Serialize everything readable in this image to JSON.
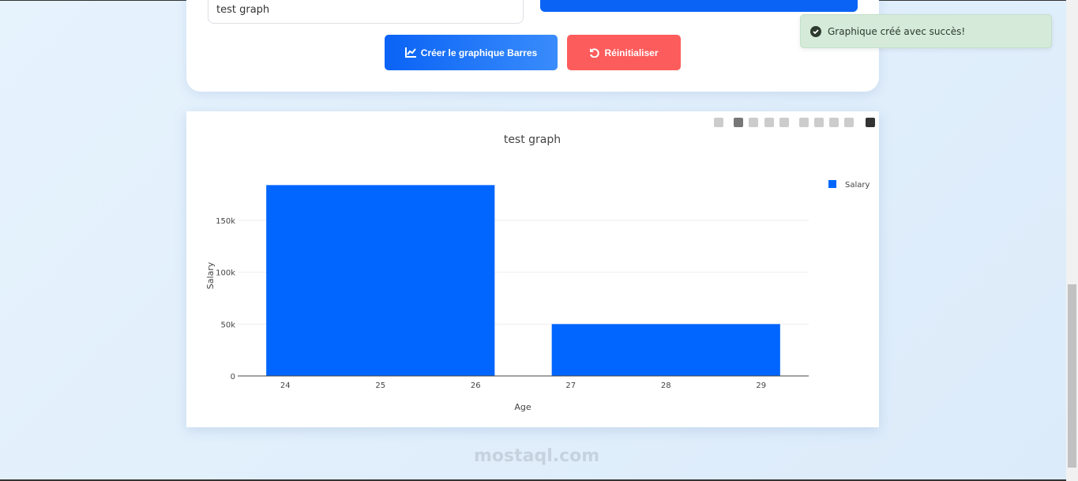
{
  "form": {
    "title_value": "test graph",
    "create_button": "Créer le graphique Barres",
    "reset_button": "Réinitialiser"
  },
  "toast": {
    "message": "Graphique créé avec succès!"
  },
  "toolbar": {
    "icons": [
      "camera-icon",
      "zoom-icon",
      "pan-icon",
      "box-select-icon",
      "lasso-select-icon",
      "zoom-in-icon",
      "zoom-out-icon",
      "autoscale-icon",
      "reset-axes-icon",
      "plotly-logo-icon"
    ]
  },
  "watermark": "mostaql.com",
  "colors": {
    "accent": "#0066ff",
    "reset": "#fd5c5c",
    "toast_bg": "#d5ead9"
  },
  "chart_data": {
    "type": "bar",
    "title": "test graph",
    "xlabel": "Age",
    "ylabel": "Salary",
    "x": [
      25,
      28
    ],
    "bar_width": 2.4,
    "series": [
      {
        "name": "Salary",
        "values": [
          184000,
          50000
        ],
        "color": "#0066ff"
      }
    ],
    "xlim": [
      23.5,
      29.5
    ],
    "ylim": [
      0,
      190000
    ],
    "xticks": [
      "24",
      "25",
      "26",
      "27",
      "28",
      "29"
    ],
    "yticks": [
      {
        "v": 0,
        "label": "0"
      },
      {
        "v": 50000,
        "label": "50k"
      },
      {
        "v": 100000,
        "label": "100k"
      },
      {
        "v": 150000,
        "label": "150k"
      }
    ],
    "grid": true,
    "legend": "top-right"
  }
}
